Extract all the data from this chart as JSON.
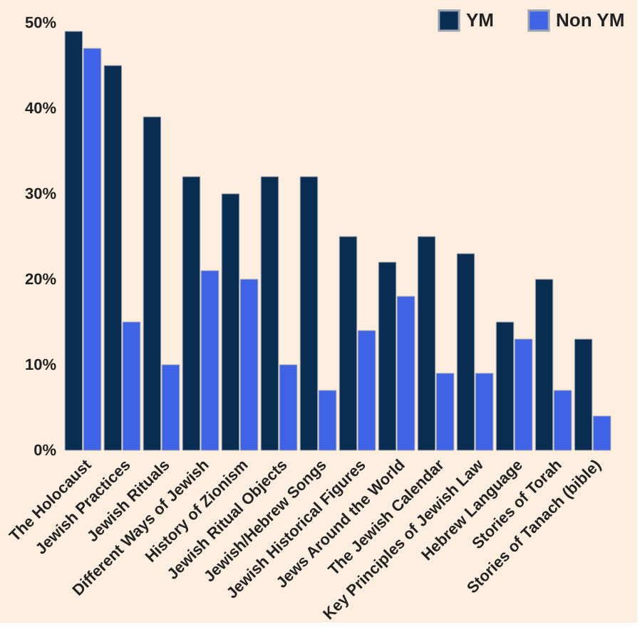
{
  "chart_data": {
    "type": "bar",
    "categories": [
      "The Holocaust",
      "Jewish Practices",
      "Jewish Rituals",
      "Different Ways of Jewish",
      "History of Zionism",
      "Jewish Ritual Objects",
      "Jewish/Hebrew Songs",
      "Jewish Historical Figures",
      "Jews Around the World",
      "The Jewish Calendar",
      "Key Principles of Jewish Law",
      "Hebrew Language",
      "Stories of Torah",
      "Stories of Tanach (bible)"
    ],
    "series": [
      {
        "name": "YM",
        "color": "#0a2d52",
        "values": [
          49,
          45,
          39,
          32,
          30,
          32,
          32,
          25,
          22,
          25,
          23,
          15,
          20,
          13
        ]
      },
      {
        "name": "Non YM",
        "color": "#3f63e6",
        "values": [
          47,
          15,
          10,
          21,
          20,
          10,
          7,
          14,
          18,
          9,
          9,
          13,
          7,
          4
        ]
      }
    ],
    "ylim": [
      0,
      50
    ],
    "yticks": [
      {
        "value": 0,
        "label": "0%"
      },
      {
        "value": 10,
        "label": "10%"
      },
      {
        "value": 20,
        "label": "20%"
      },
      {
        "value": 30,
        "label": "30%"
      },
      {
        "value": 40,
        "label": "40%"
      },
      {
        "value": 50,
        "label": "50%"
      }
    ],
    "grid": false,
    "legend": "top right"
  }
}
